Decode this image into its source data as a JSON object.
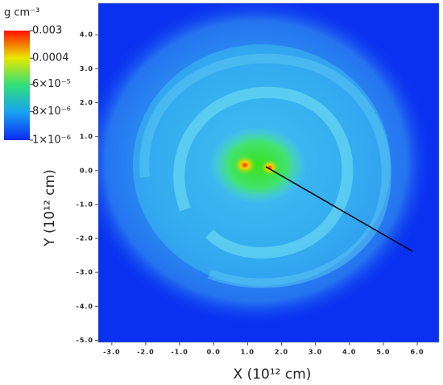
{
  "chart_data": {
    "type": "density-map",
    "colorbar_label": "g cm⁻³",
    "x_label": "X (10¹² cm)",
    "y_label": "Y (10¹² cm)",
    "xlim": [
      -3.4,
      6.64
    ],
    "ylim": [
      -5.06,
      4.93
    ],
    "xticks": [
      {
        "value": -3,
        "label": "-3.0"
      },
      {
        "value": -2,
        "label": "-2.0"
      },
      {
        "value": -1,
        "label": "-1.0"
      },
      {
        "value": 0,
        "label": "0.0"
      },
      {
        "value": 1,
        "label": "1.0"
      },
      {
        "value": 2,
        "label": "2.0"
      },
      {
        "value": 3,
        "label": "3.0"
      },
      {
        "value": 4,
        "label": "4.0"
      },
      {
        "value": 5,
        "label": "5.0"
      },
      {
        "value": 6,
        "label": "6.0"
      }
    ],
    "yticks": [
      {
        "value": -5,
        "label": "-5.0"
      },
      {
        "value": -4,
        "label": "-4.0"
      },
      {
        "value": -3,
        "label": "-3.0"
      },
      {
        "value": -2,
        "label": "-2.0"
      },
      {
        "value": -1,
        "label": "-1.0"
      },
      {
        "value": 0,
        "label": "0.0"
      },
      {
        "value": 1,
        "label": "1.0"
      },
      {
        "value": 2,
        "label": "2.0"
      },
      {
        "value": 3,
        "label": "3.0"
      },
      {
        "value": 4,
        "label": "4.0"
      }
    ],
    "colorbar_log": true,
    "clim": [
      1e-06,
      0.003
    ],
    "colorbar_ticks": [
      0.003,
      0.0004,
      {
        "value": 6e-05,
        "label": "6×10⁻⁵"
      },
      {
        "value": 8e-06,
        "label": "8×10⁻⁶"
      },
      {
        "value": 1e-06,
        "label": "1×10⁻⁶"
      }
    ]
  }
}
